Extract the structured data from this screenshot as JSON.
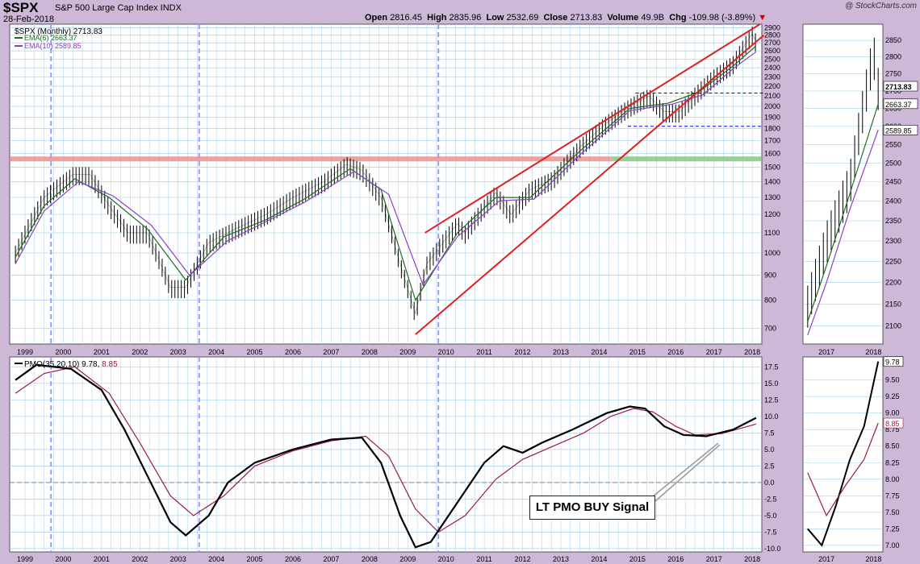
{
  "header": {
    "symbol": "$SPX",
    "description": "S&P 500 Large Cap Index  INDX",
    "date": "28-Feb-2018",
    "open_label": "Open",
    "open": "2816.45",
    "high_label": "High",
    "high": "2835.96",
    "low_label": "Low",
    "low": "2532.69",
    "close_label": "Close",
    "close": "2713.83",
    "volume_label": "Volume",
    "volume": "49.9B",
    "chg_label": "Chg",
    "chg": "-109.98 (-3.89%)",
    "watermark": "@ StockCharts.com"
  },
  "legend": {
    "price": "$SPX (Monthly) 2713.83",
    "ema6": "EMA(6) 2663.37",
    "ema10": "EMA(10) 2589.85",
    "pmo_name": "PMO(35,20,10)",
    "pmo_val": "9.78",
    "pmo_sig": "8.85"
  },
  "annotation": "LT PMO BUY Signal",
  "colors": {
    "background": "#cdb8d8",
    "panel": "#ffffff",
    "grid": "#a8d0e8",
    "price": "#000000",
    "ema6": "#1e6b1e",
    "ema10": "#8a3fc9",
    "pmo": "#000000",
    "pmo_signal": "#9c1a4b",
    "trend": "#e02020",
    "resistance": "#e88a8a",
    "support": "#7cc47c",
    "marker": "#9b9bf2"
  },
  "chart_data": [
    {
      "type": "line",
      "title": "$SPX (Monthly)",
      "log_scale": true,
      "ylim": [
        650,
        2950
      ],
      "yticks": [
        700,
        800,
        900,
        1000,
        1100,
        1200,
        1300,
        1400,
        1500,
        1600,
        1700,
        1800,
        1900,
        2000,
        2100,
        2200,
        2300,
        2400,
        2500,
        2600,
        2700,
        2800,
        2900
      ],
      "xticks": [
        "1999",
        "2000",
        "2001",
        "2002",
        "2003",
        "2004",
        "2005",
        "2006",
        "2007",
        "2008",
        "2009",
        "2010",
        "2011",
        "2012",
        "2013",
        "2014",
        "2015",
        "2016",
        "2017",
        "2018"
      ],
      "series": [
        {
          "name": "$SPX",
          "x": [
            1998.75,
            1999.5,
            2000.25,
            2000.7,
            2001.2,
            2001.7,
            2002.2,
            2002.8,
            2003.2,
            2003.8,
            2004.5,
            2005.3,
            2006,
            2006.8,
            2007.4,
            2007.8,
            2008.3,
            2008.8,
            2009.2,
            2009.5,
            2010.3,
            2010.5,
            2011.3,
            2011.7,
            2012.2,
            2012.8,
            2013.5,
            2014.2,
            2014.8,
            2015.3,
            2015.7,
            2016.1,
            2016.6,
            2017,
            2017.5,
            2018,
            2018.1
          ],
          "y": [
            1000,
            1300,
            1450,
            1450,
            1250,
            1100,
            1100,
            850,
            850,
            1050,
            1120,
            1200,
            1300,
            1400,
            1520,
            1480,
            1300,
            950,
            750,
            950,
            1150,
            1100,
            1330,
            1200,
            1350,
            1420,
            1650,
            1850,
            2000,
            2100,
            1950,
            1950,
            2150,
            2300,
            2450,
            2820,
            2713
          ]
        },
        {
          "name": "EMA(6)",
          "x": [
            1998.75,
            1999.5,
            2000.3,
            2001.2,
            2002.2,
            2003.2,
            2004.2,
            2005.3,
            2006.3,
            2007.5,
            2008.3,
            2009.2,
            2010.3,
            2011.3,
            2012.2,
            2013.5,
            2014.8,
            2015.8,
            2016.6,
            2017.5,
            2018.1
          ],
          "y": [
            980,
            1250,
            1420,
            1300,
            1120,
            880,
            1080,
            1170,
            1290,
            1490,
            1350,
            800,
            1100,
            1300,
            1300,
            1620,
            1980,
            2030,
            2140,
            2420,
            2663
          ]
        },
        {
          "name": "EMA(10)",
          "x": [
            1998.75,
            1999.5,
            2000.4,
            2001.3,
            2002.3,
            2003.3,
            2004.3,
            2005.3,
            2006.3,
            2007.6,
            2008.5,
            2009.4,
            2010.3,
            2011.4,
            2012.3,
            2013.5,
            2014.8,
            2015.9,
            2016.7,
            2017.5,
            2018.1
          ],
          "y": [
            950,
            1220,
            1400,
            1310,
            1140,
            900,
            1060,
            1160,
            1270,
            1470,
            1320,
            860,
            1080,
            1280,
            1290,
            1590,
            1960,
            2020,
            2110,
            2390,
            2590
          ]
        }
      ],
      "lines": [
        {
          "name": "upper channel",
          "x": [
            2009.45,
            2018.2
          ],
          "y": [
            1100,
            2950
          ]
        },
        {
          "name": "lower channel",
          "x": [
            2009.2,
            2018.3
          ],
          "y": [
            680,
            2800
          ]
        },
        {
          "name": "resistance",
          "y": 1560
        },
        {
          "name": "dashed top",
          "x": [
            2014.95,
            2018.3
          ],
          "y": [
            2130,
            2130
          ]
        },
        {
          "name": "dashed bottom",
          "x": [
            2014.75,
            2018.3
          ],
          "y": [
            1820,
            1820
          ]
        }
      ]
    },
    {
      "type": "line",
      "title": "PMO(35,20,10)",
      "ylim": [
        -10.5,
        19
      ],
      "yticks": [
        -10.0,
        -7.5,
        -5.0,
        -2.5,
        0.0,
        2.5,
        5.0,
        7.5,
        10.0,
        12.5,
        15.0,
        17.5
      ],
      "series": [
        {
          "name": "PMO",
          "x": [
            1998.75,
            1999.3,
            2000.2,
            2001,
            2001.6,
            2002.2,
            2002.8,
            2003.2,
            2003.8,
            2004.3,
            2005,
            2006,
            2007,
            2007.8,
            2008.3,
            2008.8,
            2009.2,
            2009.6,
            2010.3,
            2011,
            2011.5,
            2012,
            2012.5,
            2013.3,
            2014.2,
            2014.8,
            2015.2,
            2015.7,
            2016.2,
            2016.8,
            2017.5,
            2018.1
          ],
          "y": [
            15.5,
            17.8,
            17.2,
            14,
            8,
            1,
            -6,
            -8,
            -5,
            0,
            3,
            5,
            6.5,
            6.8,
            3,
            -5,
            -9.8,
            -9,
            -3,
            3,
            5.5,
            4.5,
            6,
            8,
            10.5,
            11.5,
            11.2,
            8.5,
            7.2,
            7,
            8,
            9.78
          ]
        },
        {
          "name": "Signal",
          "x": [
            1998.75,
            1999.5,
            2000.3,
            2001.2,
            2002,
            2002.8,
            2003.4,
            2004.2,
            2005,
            2006,
            2007,
            2007.9,
            2008.5,
            2009.2,
            2009.8,
            2010.5,
            2011.3,
            2012,
            2012.8,
            2013.6,
            2014.3,
            2014.9,
            2015.4,
            2016,
            2016.5,
            2017.2,
            2018.1
          ],
          "y": [
            13.5,
            16.5,
            17.5,
            13.5,
            6,
            -2,
            -5,
            -2,
            2.5,
            4.8,
            6.3,
            7,
            4,
            -4,
            -7.5,
            -5,
            0.5,
            3.5,
            5.5,
            7.5,
            10,
            11.2,
            10.7,
            8.5,
            7.2,
            7.4,
            8.85
          ]
        }
      ]
    }
  ]
}
